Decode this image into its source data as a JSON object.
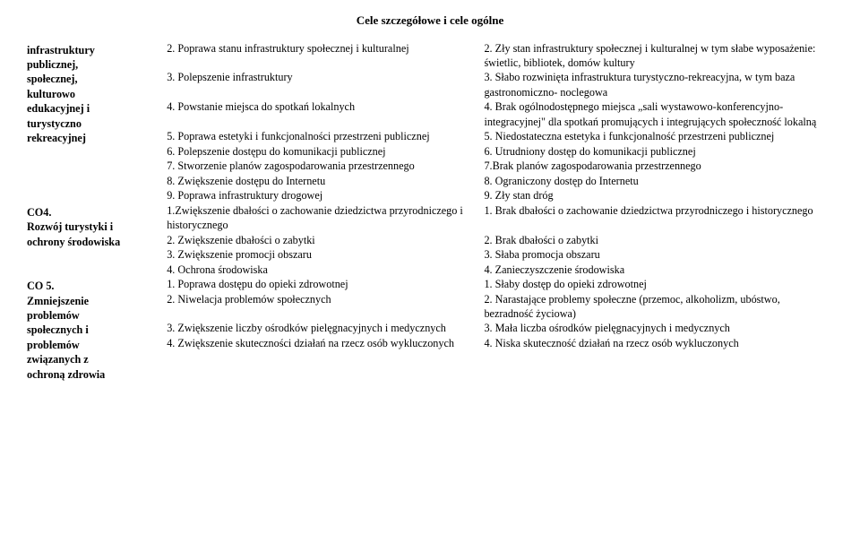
{
  "title": "Cele szczegółowe i cele ogólne",
  "rows": [
    {
      "left_lines": [
        {
          "text": "infrastruktury",
          "bold": true
        },
        {
          "text": "publicznej,",
          "bold": true
        },
        {
          "text": "społecznej,",
          "bold": true
        },
        {
          "text": "kulturowo",
          "bold": true
        },
        {
          "text": "edukacyjnej i",
          "bold": true
        },
        {
          "text": "turystyczno",
          "bold": true
        },
        {
          "text": "rekreacyjnej",
          "bold": true
        }
      ],
      "pairs": [
        {
          "c2": "2. Poprawa stanu infrastruktury społecznej i kulturalnej",
          "c3": "2. Zły stan infrastruktury społecznej i kulturalnej w tym słabe wyposażenie: świetlic, bibliotek, domów kultury"
        },
        {
          "c2": "3. Polepszenie infrastruktury",
          "c3": "3. Słabo rozwinięta infrastruktura turystyczno-rekreacyjna, w tym baza gastronomiczno- noclegowa"
        },
        {
          "c2": "4. Powstanie miejsca do spotkań lokalnych",
          "c3": "4. Brak ogólnodostępnego miejsca „sali wystawowo-konferencyjno-integracyjnej\" dla spotkań promujących i integrujących społeczność lokalną"
        },
        {
          "c2": "5. Poprawa estetyki i funkcjonalności przestrzeni publicznej",
          "c3": "5. Niedostateczna estetyka i funkcjonalność przestrzeni publicznej"
        },
        {
          "c2": "6. Polepszenie dostępu do komunikacji publicznej",
          "c3": "6. Utrudniony dostęp do komunikacji publicznej"
        },
        {
          "c2": "7. Stworzenie planów zagospodarowania przestrzennego",
          "c3": "7.Brak planów zagospodarowania przestrzennego"
        },
        {
          "c2": "8. Zwiększenie dostępu do Internetu",
          "c3": "8. Ograniczony dostęp do Internetu"
        },
        {
          "c2": "9. Poprawa infrastruktury drogowej",
          "c3": "9. Zły stan dróg"
        }
      ]
    },
    {
      "left_lines": [
        {
          "text": "CO4.",
          "bold": true
        },
        {
          "text": "Rozwój turystyki i",
          "bold": true
        },
        {
          "text": "ochrony środowiska",
          "bold": true
        }
      ],
      "pairs": [
        {
          "c2": "1.Zwiększenie dbałości o zachowanie dziedzictwa przyrodniczego i historycznego",
          "c3": "1. Brak dbałości o zachowanie dziedzictwa przyrodniczego i historycznego"
        },
        {
          "c2": "2. Zwiększenie dbałości o zabytki",
          "c3": "2. Brak dbałości o zabytki"
        },
        {
          "c2": "3. Zwiększenie promocji obszaru",
          "c3": "3. Słaba promocja obszaru"
        },
        {
          "c2": "4. Ochrona środowiska",
          "c3": "4. Zanieczyszczenie środowiska"
        }
      ]
    },
    {
      "left_lines": [
        {
          "text": "CO 5.",
          "bold": true
        },
        {
          "text": "Zmniejszenie",
          "bold": true
        },
        {
          "text": "problemów",
          "bold": true
        },
        {
          "text": "społecznych i",
          "bold": true
        },
        {
          "text": "problemów",
          "bold": true
        },
        {
          "text": "związanych z",
          "bold": true
        },
        {
          "text": "ochroną zdrowia",
          "bold": true
        }
      ],
      "pairs": [
        {
          "c2": "1. Poprawa dostępu do opieki zdrowotnej",
          "c3": "1. Słaby dostęp do opieki zdrowotnej"
        },
        {
          "c2": "2. Niwelacja problemów społecznych",
          "c3": "2. Narastające problemy społeczne (przemoc, alkoholizm, ubóstwo, bezradność życiowa)"
        },
        {
          "c2": "3. Zwiększenie liczby ośrodków pielęgnacyjnych i medycznych",
          "c3": "3. Mała liczba ośrodków pielęgnacyjnych i medycznych"
        },
        {
          "c2": "4. Zwiększenie skuteczności działań na rzecz osób wykluczonych",
          "c3": "4. Niska skuteczność działań na rzecz osób wykluczonych"
        }
      ]
    }
  ]
}
